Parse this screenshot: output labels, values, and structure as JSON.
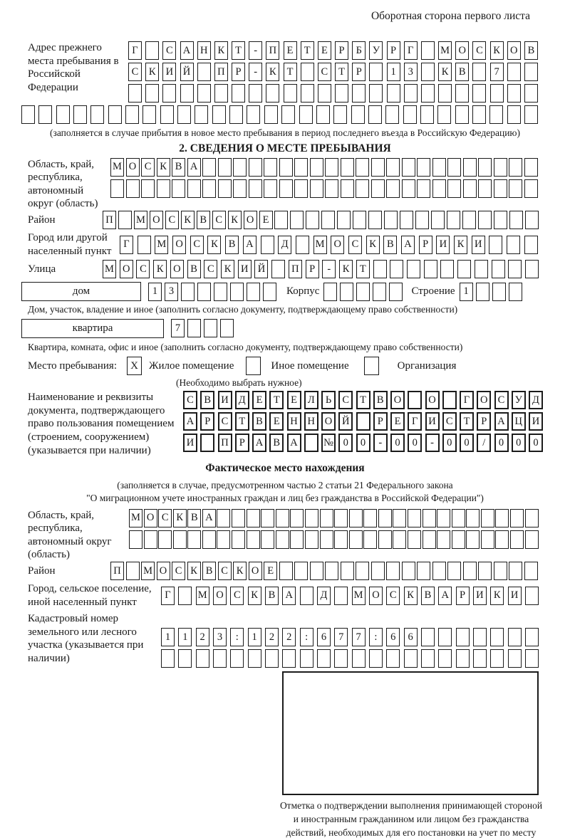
{
  "header": {
    "back_side_note": "Оборотная сторона первого листа"
  },
  "colors": {
    "ink": "#1a1a1a",
    "paper": "#ffffff"
  },
  "prev_address": {
    "label": "Адрес прежнего места пребывания в Российской Федерации",
    "row1": "Г_САНКТ-ПЕТЕРБУРГ_МОСКОВ",
    "row2": "СКИЙ_ПР-КТ_СТР_13_КВ_7__",
    "row3": "________________________",
    "row4": "______________________________",
    "note": "(заполняется в случае прибытия в новое место пребывания в период последнего въезда в Российскую Федерацию)"
  },
  "section2": {
    "title": "2. СВЕДЕНИЯ О МЕСТЕ ПРЕБЫВАНИЯ",
    "region": {
      "label": "Область, край, республика, автономный округ (область)",
      "row1": "МОСКВА______________________",
      "row2": "____________________________"
    },
    "district": {
      "label": "Район",
      "row": "П_МОСКВСКОЕ_________________"
    },
    "city": {
      "label": "Город или другой населенный пункт",
      "row": "Г_МОСКВА_Д_МОСКВАРИКИ___"
    },
    "street": {
      "label": "Улица",
      "row": "МОСКОВСКИЙ_ПР-КТ__________"
    },
    "house": {
      "box_label": "дом",
      "cells": "13______",
      "korpus_label": "Корпус",
      "korpus_cells": "_____",
      "stroenie_label": "Строение",
      "stroenie_cells": "1___",
      "note": "Дом, участок, владение и иное (заполнить согласно документу, подтверждающему право собственности)"
    },
    "apartment": {
      "box_label": "квартира",
      "cells": "7___",
      "note": "Квартира, комната, офис и иное (заполнить согласно документу, подтверждающему право собственности)"
    },
    "stay_type": {
      "label": "Место пребывания:",
      "options": [
        {
          "label": "Жилое помещение",
          "mark": "X"
        },
        {
          "label": "Иное помещение",
          "mark": ""
        },
        {
          "label": "Организация",
          "mark": ""
        }
      ],
      "note": "(Необходимо выбрать нужное)"
    },
    "document": {
      "label": "Наименование и реквизиты документа, подтверждающего право пользования помещением (строением, сооружением) (указывается при наличии)",
      "row1": "СВИДЕТЕЛЬСТВО_О_ГОСУД",
      "row2": "АРСТВЕННОЙ_РЕГИСТРАЦИ",
      "row3": "И_ПРАВА_№00-00-00/000"
    }
  },
  "actual_location": {
    "title": "Фактическое место нахождения",
    "note_line1": "(заполняется в случае, предусмотренном частью 2 статьи 21 Федерального закона",
    "note_line2": "\"О миграционном учете иностранных граждан и лиц без гражданства в Российской Федерации\")",
    "region": {
      "label": "Область, край, республика, автономный округ (область)",
      "row1": "МОСКВА______________________",
      "row2": "____________________________"
    },
    "district": {
      "label": "Район",
      "row": "П_МОСКВСКОЕ_________________"
    },
    "city": {
      "label": "Город, сельское поселение, иной населенный пункт",
      "row": "Г_МОСКВА_Д_МОСКВАРИКИ_"
    },
    "cadastre": {
      "label": "Кадастровый номер земельного или лесного участка (указывается при наличии)",
      "row1": "1123:122:677:66_______",
      "row2": "______________________"
    },
    "confirmation": {
      "caption": "Отметка о подтверждении выполнения принимающей стороной и иностранным гражданином или лицом без гражданства действий, необходимых для его постановки на учет по месту пребывания"
    }
  }
}
